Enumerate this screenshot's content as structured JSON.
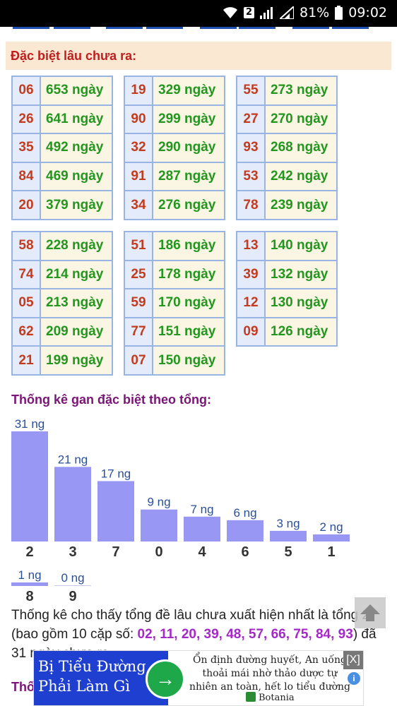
{
  "status_bar": {
    "sim": "2",
    "battery": "81%",
    "time": "09:02"
  },
  "section_header": "Đặc biệt lâu chưa ra:",
  "tables": [
    [
      [
        "06",
        "653 ngày"
      ],
      [
        "26",
        "641 ngày"
      ],
      [
        "35",
        "492 ngày"
      ],
      [
        "84",
        "469 ngày"
      ],
      [
        "20",
        "379 ngày"
      ]
    ],
    [
      [
        "19",
        "329 ngày"
      ],
      [
        "90",
        "299 ngày"
      ],
      [
        "32",
        "290 ngày"
      ],
      [
        "91",
        "287 ngày"
      ],
      [
        "34",
        "276 ngày"
      ]
    ],
    [
      [
        "55",
        "273 ngày"
      ],
      [
        "27",
        "270 ngày"
      ],
      [
        "93",
        "268 ngày"
      ],
      [
        "53",
        "242 ngày"
      ],
      [
        "78",
        "239 ngày"
      ]
    ],
    [
      [
        "58",
        "228 ngày"
      ],
      [
        "74",
        "214 ngày"
      ],
      [
        "05",
        "213 ngày"
      ],
      [
        "62",
        "209 ngày"
      ],
      [
        "21",
        "199 ngày"
      ]
    ],
    [
      [
        "51",
        "186 ngày"
      ],
      [
        "25",
        "178 ngày"
      ],
      [
        "59",
        "170 ngày"
      ],
      [
        "77",
        "151 ngày"
      ],
      [
        "07",
        "150 ngày"
      ]
    ],
    [
      [
        "13",
        "140 ngày"
      ],
      [
        "39",
        "132 ngày"
      ],
      [
        "12",
        "130 ngày"
      ],
      [
        "09",
        "126 ngày"
      ]
    ]
  ],
  "chart_title": "Thống kê gan đặc biệt theo tổng:",
  "chart_data": {
    "type": "bar",
    "categories": [
      "2",
      "3",
      "7",
      "0",
      "4",
      "6",
      "5",
      "1",
      "8",
      "9"
    ],
    "values": [
      31,
      21,
      17,
      9,
      7,
      6,
      3,
      2,
      1,
      0
    ],
    "value_labels": [
      "31 ng",
      "21 ng",
      "17 ng",
      "9 ng",
      "7 ng",
      "6 ng",
      "3 ng",
      "2 ng",
      "1 ng",
      "0 ng"
    ],
    "bar_color": "#9898f4",
    "title": "",
    "xlabel": "",
    "ylabel": ""
  },
  "summary": {
    "text_before": "Thống kê cho thấy tổng đề lâu chưa xuất hiện nhất là tổng 2 (bao gồm 10 cặp số: ",
    "pairs": "02, 11, 20, 39, 48, 57, 66, 75, 84, 93",
    "text_after": ") đã 31 ngày chưa ra."
  },
  "next_title": "Thố",
  "ad": {
    "left_line1": "Bị Tiểu Đường",
    "left_line2": "Phải Làm Gì",
    "text": "Ổn định đường huyết, An uống thoải mái nhờ thảo dược tự nhiên an toàn, hết lo tiểu đường",
    "brand": "Botania",
    "close": "[X]",
    "info": "i"
  },
  "colors": {
    "accent_red": "#c01e1e",
    "purple": "#7a1577",
    "green": "#22961f",
    "pair_purple": "#a528c9"
  }
}
